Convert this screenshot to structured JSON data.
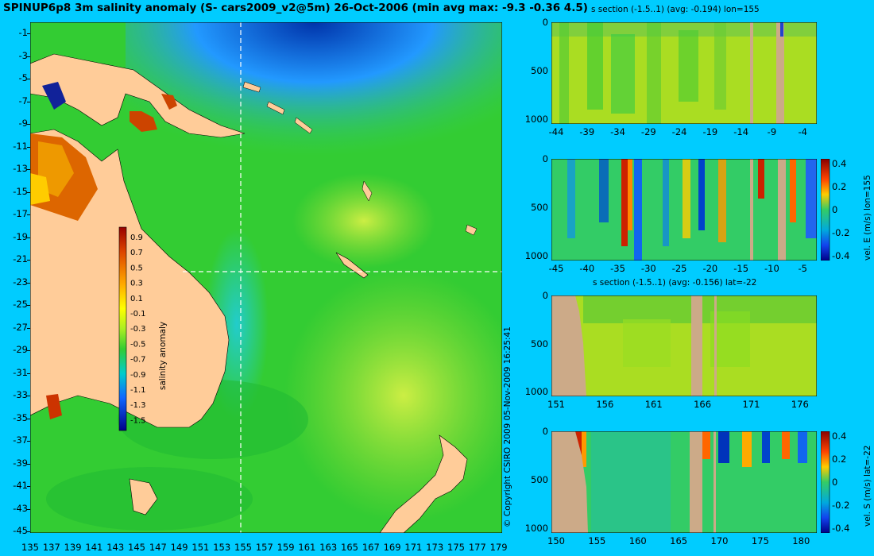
{
  "main_map": {
    "title": "SPINUP6p8 3m salinity anomaly (S- cars2009_v2@5m) 26-Oct-2006 (min avg max: -9.3 -0.36 4.5)",
    "lat_ticks": [
      "-1",
      "-3",
      "-5",
      "-7",
      "-9",
      "-11",
      "-13",
      "-15",
      "-17",
      "-19",
      "-21",
      "-23",
      "-25",
      "-27",
      "-29",
      "-31",
      "-33",
      "-35",
      "-37",
      "-39",
      "-41",
      "-43",
      "-45"
    ],
    "lon_ticks": [
      "135",
      "137",
      "139",
      "141",
      "143",
      "145",
      "147",
      "149",
      "151",
      "153",
      "155",
      "157",
      "159",
      "161",
      "163",
      "165",
      "167",
      "169",
      "171",
      "173",
      "175",
      "177",
      "179"
    ],
    "colorbar": {
      "label": "salinity anomaly",
      "ticks": [
        "0.9",
        "0.7",
        "0.5",
        "0.3",
        "0.1",
        "-0.1",
        "-0.3",
        "-0.5",
        "-0.7",
        "-0.9",
        "-1.1",
        "-1.3",
        "-1.5"
      ]
    },
    "section_lines": {
      "lon": 155,
      "lat": -22
    },
    "land_color": "#ffcc99"
  },
  "copyright": "© Copyright CSIRO 2009   05-Nov-2009 16:25:41",
  "panels": [
    {
      "id": "salinity-lon",
      "title": "s section (-1.5..1) (avg: -0.194) lon=155",
      "y_ticks": [
        "0",
        "500",
        "1000"
      ],
      "x_ticks": [
        "-44",
        "-39",
        "-34",
        "-29",
        "-24",
        "-19",
        "-14",
        "-9",
        "-4"
      ],
      "colorbar": null
    },
    {
      "id": "velocity-lon",
      "title": "",
      "y_ticks": [
        "0",
        "500",
        "1000"
      ],
      "x_ticks": [
        "-45",
        "-40",
        "-35",
        "-30",
        "-25",
        "-20",
        "-15",
        "-10",
        "-5"
      ],
      "colorbar": {
        "label": "vel. E (m/s) lon=155",
        "ticks": [
          "0.4",
          "0.2",
          "0",
          "-0.2",
          "-0.4"
        ]
      }
    },
    {
      "id": "salinity-lat",
      "title": "s section (-1.5..1) (avg: -0.156) lat=-22",
      "y_ticks": [
        "0",
        "500",
        "1000"
      ],
      "x_ticks": [
        "151",
        "156",
        "161",
        "166",
        "171",
        "176"
      ],
      "colorbar": null
    },
    {
      "id": "velocity-lat",
      "title": "",
      "y_ticks": [
        "0",
        "500",
        "1000"
      ],
      "x_ticks": [
        "150",
        "155",
        "160",
        "165",
        "170",
        "175",
        "180"
      ],
      "colorbar": {
        "label": "vel. S (m/s) lat=-22",
        "ticks": [
          "0.4",
          "0.2",
          "0",
          "-0.2",
          "-0.4"
        ]
      }
    }
  ],
  "colors": {
    "background": "#00ccff",
    "ocean": "#33cc33",
    "land": "#ffcc99",
    "section_land": "#ccaa88"
  }
}
